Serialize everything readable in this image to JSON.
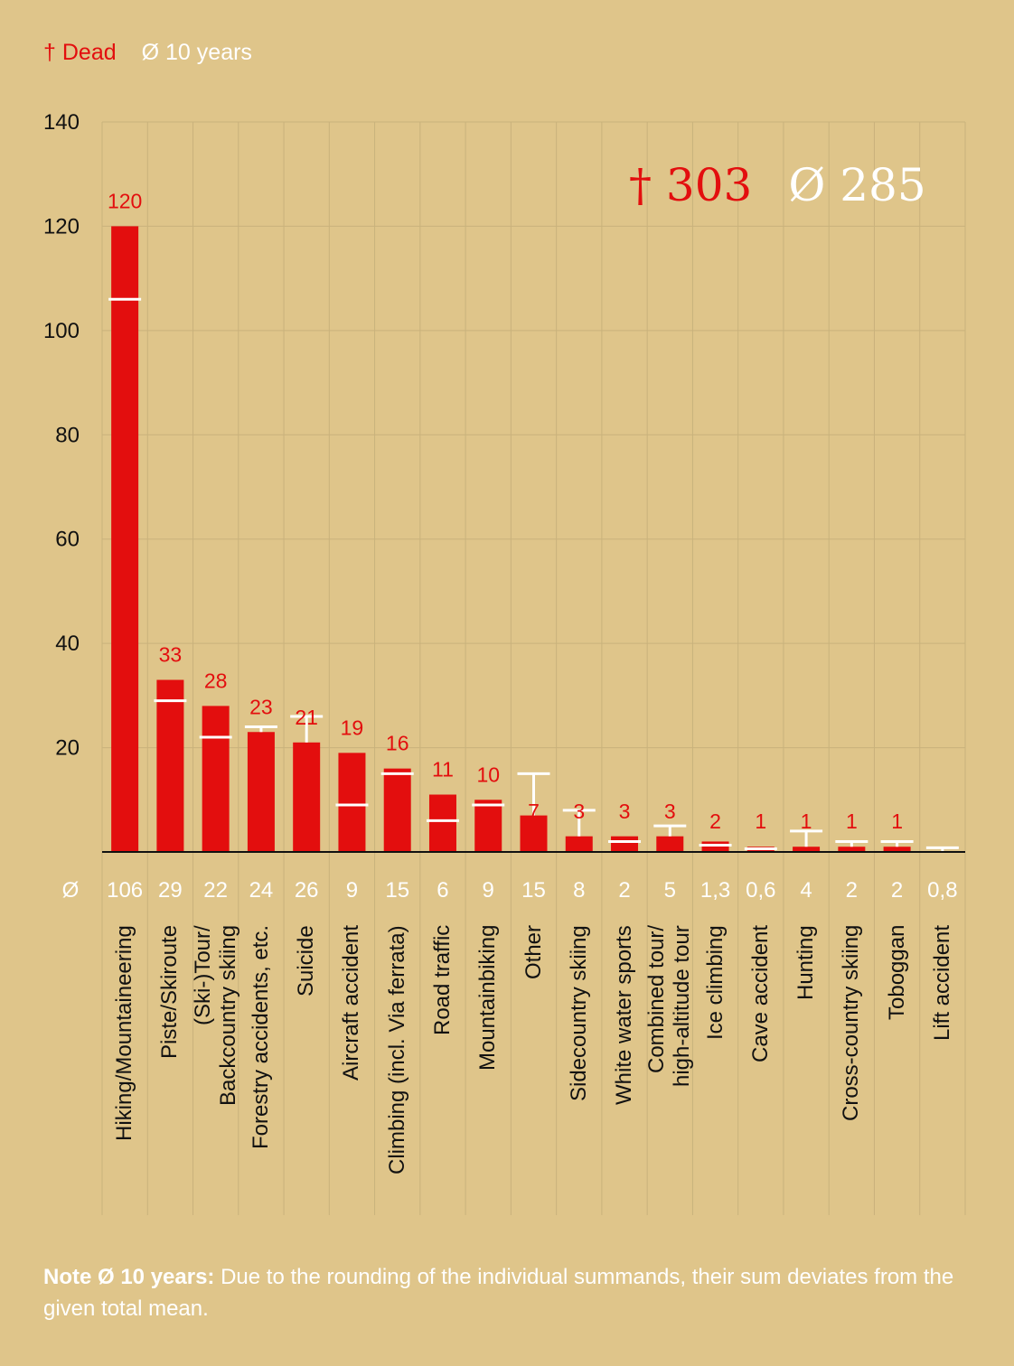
{
  "legend": {
    "dead_symbol": "†",
    "dead_label": "Dead",
    "avg_symbol": "Ø",
    "avg_label": "10 years"
  },
  "totals": {
    "dead": "† 303",
    "avg": "Ø 285"
  },
  "avg_row_symbol": "Ø",
  "colors": {
    "background": "#dfc58a",
    "bar": "#e30e0e",
    "average_marker": "#ffffff",
    "grid": "#c9b27c"
  },
  "chart_data": {
    "type": "bar",
    "ylim": [
      0,
      140
    ],
    "yticks": [
      20,
      40,
      60,
      80,
      100,
      120,
      140
    ],
    "grid": true,
    "legend_placement": "top-left",
    "categories": [
      "Hiking/Mountaineering",
      "Piste/Skiroute",
      "(Ski-)Tour/\nBackcountry skiing",
      "Forestry accidents, etc.",
      "Suicide",
      "Aircraft accident",
      "Climbing (incl. Via ferrata)",
      "Road traffic",
      "Mountainbiking",
      "Other",
      "Sidecountry skiing",
      "White water sports",
      "Combined tour/\nhigh-altitude tour",
      "Ice climbing",
      "Cave accident",
      "Hunting",
      "Cross-country skiing",
      "Toboggan",
      "Lift accident"
    ],
    "series": [
      {
        "name": "Dead",
        "values": [
          120,
          33,
          28,
          23,
          21,
          19,
          16,
          11,
          10,
          7,
          3,
          3,
          3,
          2,
          1,
          1,
          1,
          1,
          0
        ],
        "labels": [
          "120",
          "33",
          "28",
          "23",
          "21",
          "19",
          "16",
          "11",
          "10",
          "7",
          "3",
          "3",
          "3",
          "2",
          "1",
          "1",
          "1",
          "1",
          ""
        ]
      },
      {
        "name": "Ø 10 years",
        "values": [
          106,
          29,
          22,
          24,
          26,
          9,
          15,
          6,
          9,
          15,
          8,
          2,
          5,
          1.3,
          0.6,
          4,
          2,
          2,
          0.8
        ],
        "labels": [
          "106",
          "29",
          "22",
          "24",
          "26",
          "9",
          "15",
          "6",
          "9",
          "15",
          "8",
          "2",
          "5",
          "1,3",
          "0,6",
          "4",
          "2",
          "2",
          "0,8"
        ]
      }
    ]
  },
  "note": {
    "bold": "Note Ø 10 years:",
    "text": " Due to the rounding of the individual summands, their sum deviates from the given total mean."
  }
}
